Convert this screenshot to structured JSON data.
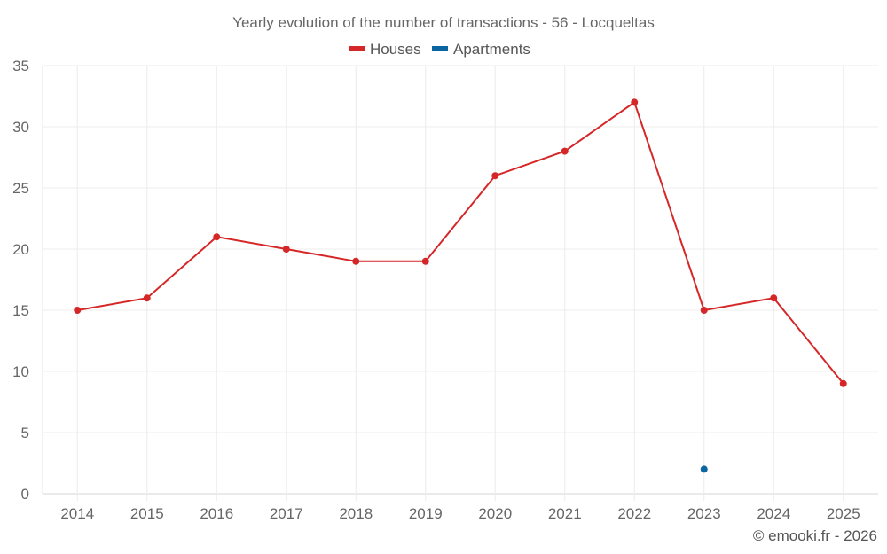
{
  "chart_data": {
    "type": "line",
    "title": "Yearly evolution of the number of transactions - 56 - Locqueltas",
    "xlabel": "",
    "ylabel": "",
    "categories": [
      "2014",
      "2015",
      "2016",
      "2017",
      "2018",
      "2019",
      "2020",
      "2021",
      "2022",
      "2023",
      "2024",
      "2025"
    ],
    "ylim": [
      0,
      35
    ],
    "yticks": [
      "0",
      "5",
      "10",
      "15",
      "20",
      "25",
      "30",
      "35"
    ],
    "grid": true,
    "legend_position": "top-center",
    "series": [
      {
        "name": "Houses",
        "color": "#d62728",
        "values": [
          15,
          16,
          21,
          20,
          19,
          19,
          26,
          28,
          32,
          15,
          16,
          9
        ]
      },
      {
        "name": "Apartments",
        "color": "#0b65a0",
        "values": [
          null,
          null,
          null,
          null,
          null,
          null,
          null,
          null,
          null,
          2,
          null,
          null
        ]
      }
    ],
    "credit": "© emooki.fr - 2026"
  }
}
